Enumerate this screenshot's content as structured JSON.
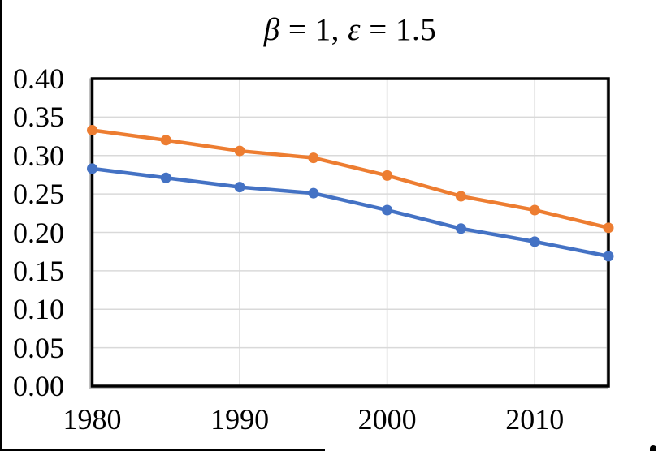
{
  "chart_data": {
    "type": "line",
    "title": "β = 1, ε = 1.5",
    "x": [
      1980,
      1985,
      1990,
      1995,
      2000,
      2005,
      2010,
      2015
    ],
    "series": [
      {
        "name": "series-blue",
        "color": "#4472C4",
        "values": [
          0.283,
          0.271,
          0.259,
          0.251,
          0.229,
          0.205,
          0.188,
          0.169
        ]
      },
      {
        "name": "series-orange",
        "color": "#ED7D31",
        "values": [
          0.333,
          0.32,
          0.306,
          0.297,
          0.274,
          0.247,
          0.229,
          0.206
        ]
      }
    ],
    "xlim": [
      1980,
      2015
    ],
    "ylim": [
      0.0,
      0.4
    ],
    "y_ticks": [
      0.4,
      0.35,
      0.3,
      0.25,
      0.2,
      0.15,
      0.1,
      0.05,
      0.0
    ],
    "y_tick_labels": [
      "0.40",
      "0.35",
      "0.30",
      "0.25",
      "0.20",
      "0.15",
      "0.10",
      "0.05",
      "0.00"
    ],
    "x_tick_values": [
      1980,
      1990,
      2000,
      2010
    ],
    "x_tick_labels": [
      "1980",
      "1990",
      "2000",
      "2010"
    ],
    "x_gridline_values": [
      1990,
      2000,
      2010
    ],
    "grid": "on",
    "legend": "none",
    "marker": "circle",
    "colors": {
      "gridline": "#D9D9D9",
      "frame": "#000000",
      "frame_shadow": "#C0C0C0",
      "background": "#FFFFFF"
    }
  }
}
